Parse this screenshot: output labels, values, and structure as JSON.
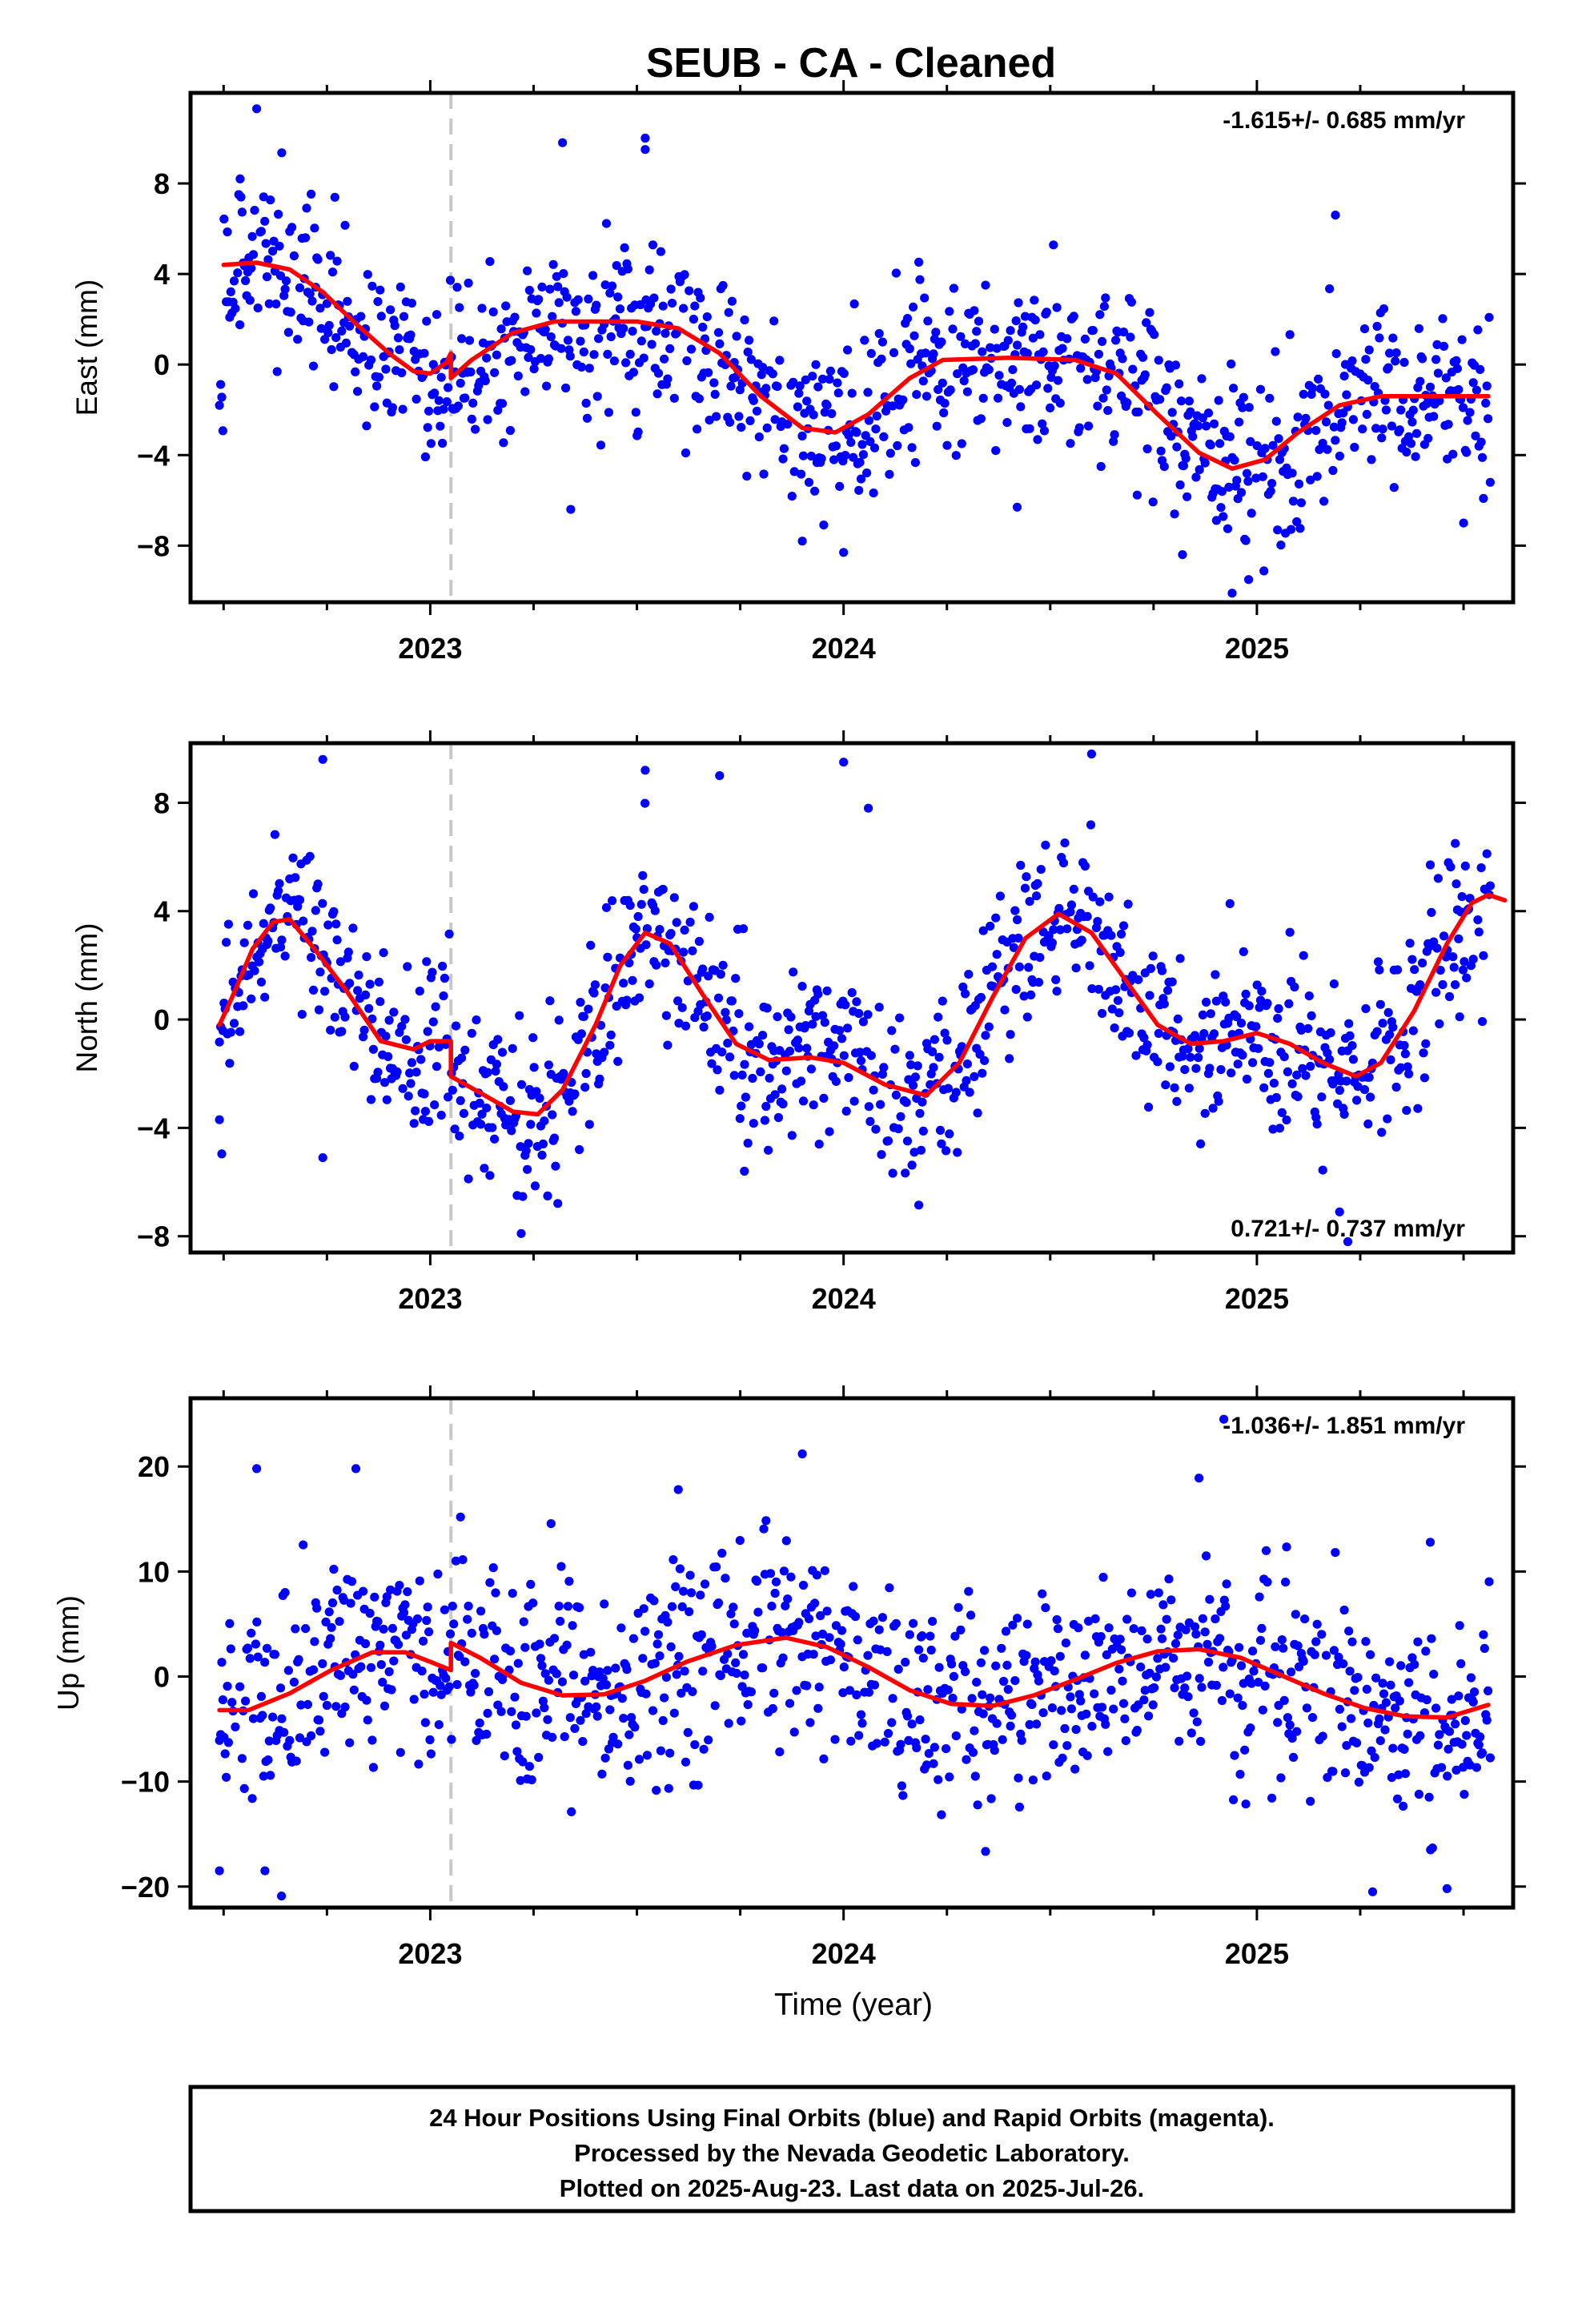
{
  "title": "SEUB  - CA - Cleaned",
  "colors": {
    "final_orbits": "#0000ff",
    "rapid_orbits": "#ff00ff",
    "model": "#ff0000",
    "offset": "#c8c8c8"
  },
  "chart_data": [
    {
      "type": "scatter",
      "component": "East",
      "ylabel": "East (mm)",
      "xlabel": "",
      "xlim": [
        2022.42,
        2025.62
      ],
      "ylim": [
        -10.5,
        12
      ],
      "yticks": [
        -8,
        -4,
        0,
        4,
        8
      ],
      "ytick_labels": [
        "−8",
        "−4",
        "0",
        "4",
        "8"
      ],
      "xticks": [
        2023,
        2024,
        2025
      ],
      "xtick_labels": [
        "2023",
        "2024",
        "2025"
      ],
      "rate_label": "-1.615+/- 0.685 mm/yr",
      "rate_position": "top-right",
      "offset_epoch": 2023.05,
      "noise_sd": 1.9,
      "model_fit": [
        [
          2022.5,
          4.4
        ],
        [
          2022.58,
          4.5
        ],
        [
          2022.66,
          4.2
        ],
        [
          2022.74,
          3.2
        ],
        [
          2022.82,
          1.8
        ],
        [
          2022.9,
          0.5
        ],
        [
          2022.96,
          -0.3
        ],
        [
          2023.0,
          -0.4
        ],
        [
          2023.04,
          0.1
        ],
        [
          2023.05,
          0.5
        ],
        [
          2023.05,
          -0.6
        ],
        [
          2023.1,
          0.2
        ],
        [
          2023.2,
          1.4
        ],
        [
          2023.3,
          1.9
        ],
        [
          2023.5,
          1.9
        ],
        [
          2023.6,
          1.6
        ],
        [
          2023.7,
          0.5
        ],
        [
          2023.8,
          -1.4
        ],
        [
          2023.9,
          -2.8
        ],
        [
          2023.98,
          -3.0
        ],
        [
          2024.06,
          -2.2
        ],
        [
          2024.16,
          -0.6
        ],
        [
          2024.24,
          0.2
        ],
        [
          2024.4,
          0.3
        ],
        [
          2024.56,
          0.2
        ],
        [
          2024.66,
          -0.4
        ],
        [
          2024.76,
          -2.2
        ],
        [
          2024.86,
          -3.9
        ],
        [
          2024.94,
          -4.6
        ],
        [
          2025.02,
          -4.2
        ],
        [
          2025.1,
          -3.0
        ],
        [
          2025.2,
          -1.8
        ],
        [
          2025.3,
          -1.4
        ],
        [
          2025.45,
          -1.4
        ],
        [
          2025.56,
          -1.4
        ]
      ],
      "outliers": [
        [
          2022.58,
          11.3
        ],
        [
          2022.54,
          8.2
        ],
        [
          2023.32,
          9.8
        ],
        [
          2023.52,
          10.0
        ],
        [
          2023.52,
          9.5
        ],
        [
          2023.34,
          -6.4
        ],
        [
          2024.0,
          -8.3
        ],
        [
          2024.82,
          -8.4
        ],
        [
          2024.94,
          -10.1
        ],
        [
          2024.98,
          -9.5
        ],
        [
          2025.19,
          6.6
        ],
        [
          2025.5,
          -7.0
        ],
        [
          2023.9,
          -7.8
        ],
        [
          2024.42,
          -6.3
        ]
      ]
    },
    {
      "type": "scatter",
      "component": "North",
      "ylabel": "North (mm)",
      "xlabel": "",
      "xlim": [
        2022.42,
        2025.62
      ],
      "ylim": [
        -8.6,
        10.2
      ],
      "yticks": [
        -8,
        -4,
        0,
        4,
        8
      ],
      "ytick_labels": [
        "−8",
        "−4",
        "0",
        "4",
        "8"
      ],
      "xticks": [
        2023,
        2024,
        2025
      ],
      "xtick_labels": [
        "2023",
        "2024",
        "2025"
      ],
      "rate_label": "0.721+/- 0.737 mm/yr",
      "rate_position": "bottom-right",
      "offset_epoch": 2023.05,
      "noise_sd": 1.6,
      "model_fit": [
        [
          2022.49,
          -0.2
        ],
        [
          2022.52,
          0.8
        ],
        [
          2022.57,
          2.6
        ],
        [
          2022.62,
          3.6
        ],
        [
          2022.66,
          3.7
        ],
        [
          2022.72,
          2.6
        ],
        [
          2022.8,
          1.0
        ],
        [
          2022.88,
          -0.8
        ],
        [
          2022.96,
          -1.1
        ],
        [
          2023.0,
          -0.8
        ],
        [
          2023.05,
          -0.8
        ],
        [
          2023.05,
          -2.1
        ],
        [
          2023.12,
          -2.7
        ],
        [
          2023.2,
          -3.4
        ],
        [
          2023.26,
          -3.5
        ],
        [
          2023.32,
          -2.6
        ],
        [
          2023.4,
          -0.2
        ],
        [
          2023.46,
          2.0
        ],
        [
          2023.52,
          3.2
        ],
        [
          2023.58,
          2.8
        ],
        [
          2023.66,
          0.9
        ],
        [
          2023.74,
          -0.9
        ],
        [
          2023.82,
          -1.5
        ],
        [
          2023.92,
          -1.4
        ],
        [
          2024.0,
          -1.6
        ],
        [
          2024.1,
          -2.4
        ],
        [
          2024.2,
          -2.8
        ],
        [
          2024.28,
          -1.6
        ],
        [
          2024.36,
          0.8
        ],
        [
          2024.44,
          3.0
        ],
        [
          2024.52,
          3.9
        ],
        [
          2024.6,
          3.2
        ],
        [
          2024.68,
          1.5
        ],
        [
          2024.76,
          -0.2
        ],
        [
          2024.84,
          -0.9
        ],
        [
          2024.92,
          -0.8
        ],
        [
          2025.0,
          -0.5
        ],
        [
          2025.08,
          -0.9
        ],
        [
          2025.16,
          -1.6
        ],
        [
          2025.24,
          -2.1
        ],
        [
          2025.3,
          -1.6
        ],
        [
          2025.38,
          0.3
        ],
        [
          2025.46,
          2.8
        ],
        [
          2025.52,
          4.3
        ],
        [
          2025.56,
          4.6
        ],
        [
          2025.6,
          4.4
        ]
      ],
      "outliers": [
        [
          2022.74,
          9.6
        ],
        [
          2023.52,
          9.2
        ],
        [
          2023.7,
          9.0
        ],
        [
          2024.0,
          9.5
        ],
        [
          2024.06,
          7.8
        ],
        [
          2024.6,
          9.8
        ],
        [
          2023.22,
          -7.9
        ],
        [
          2025.2,
          -7.1
        ],
        [
          2025.22,
          -8.2
        ],
        [
          2022.49,
          -3.7
        ],
        [
          2022.74,
          -5.1
        ],
        [
          2023.76,
          -5.6
        ],
        [
          2025.48,
          6.5
        ]
      ]
    },
    {
      "type": "scatter",
      "component": "Up",
      "ylabel": "Up (mm)",
      "xlabel": "Time (year)",
      "xlim": [
        2022.42,
        2025.62
      ],
      "ylim": [
        -22,
        26.5
      ],
      "yticks": [
        -20,
        -10,
        0,
        10,
        20
      ],
      "ytick_labels": [
        "−20",
        "−10",
        "0",
        "10",
        "20"
      ],
      "xticks": [
        2023,
        2024,
        2025
      ],
      "xtick_labels": [
        "2023",
        "2024",
        "2025"
      ],
      "rate_label": "-1.036+/- 1.851 mm/yr",
      "rate_position": "top-right",
      "offset_epoch": 2023.05,
      "noise_sd": 5.0,
      "model_fit": [
        [
          2022.49,
          -3.2
        ],
        [
          2022.56,
          -3.2
        ],
        [
          2022.66,
          -1.6
        ],
        [
          2022.76,
          0.6
        ],
        [
          2022.86,
          2.3
        ],
        [
          2022.94,
          2.3
        ],
        [
          2023.0,
          1.4
        ],
        [
          2023.05,
          0.6
        ],
        [
          2023.05,
          3.2
        ],
        [
          2023.12,
          1.8
        ],
        [
          2023.22,
          -0.6
        ],
        [
          2023.32,
          -1.8
        ],
        [
          2023.42,
          -1.7
        ],
        [
          2023.52,
          -0.4
        ],
        [
          2023.62,
          1.4
        ],
        [
          2023.74,
          3.0
        ],
        [
          2023.86,
          3.7
        ],
        [
          2023.96,
          2.8
        ],
        [
          2024.06,
          0.9
        ],
        [
          2024.16,
          -1.3
        ],
        [
          2024.26,
          -2.6
        ],
        [
          2024.36,
          -2.8
        ],
        [
          2024.46,
          -1.8
        ],
        [
          2024.56,
          -0.3
        ],
        [
          2024.66,
          1.3
        ],
        [
          2024.76,
          2.4
        ],
        [
          2024.86,
          2.6
        ],
        [
          2024.96,
          1.8
        ],
        [
          2025.06,
          0.1
        ],
        [
          2025.16,
          -1.6
        ],
        [
          2025.26,
          -3.0
        ],
        [
          2025.36,
          -3.8
        ],
        [
          2025.46,
          -3.9
        ],
        [
          2025.56,
          -2.7
        ]
      ],
      "outliers": [
        [
          2022.58,
          19.8
        ],
        [
          2022.82,
          19.8
        ],
        [
          2023.9,
          21.2
        ],
        [
          2024.86,
          18.9
        ],
        [
          2024.92,
          24.5
        ],
        [
          2022.49,
          -18.5
        ],
        [
          2022.64,
          -20.9
        ],
        [
          2022.6,
          -18.5
        ],
        [
          2025.28,
          -20.5
        ],
        [
          2025.46,
          -20.2
        ],
        [
          2025.42,
          -16.5
        ],
        [
          2023.6,
          17.8
        ]
      ]
    }
  ],
  "footer": {
    "line1": "24 Hour Positions Using Final Orbits (blue) and Rapid Orbits (magenta).",
    "line2": "Processed by the Nevada Geodetic Laboratory.",
    "line3": "Plotted on 2025-Aug-23. Last data on 2025-Jul-26."
  }
}
